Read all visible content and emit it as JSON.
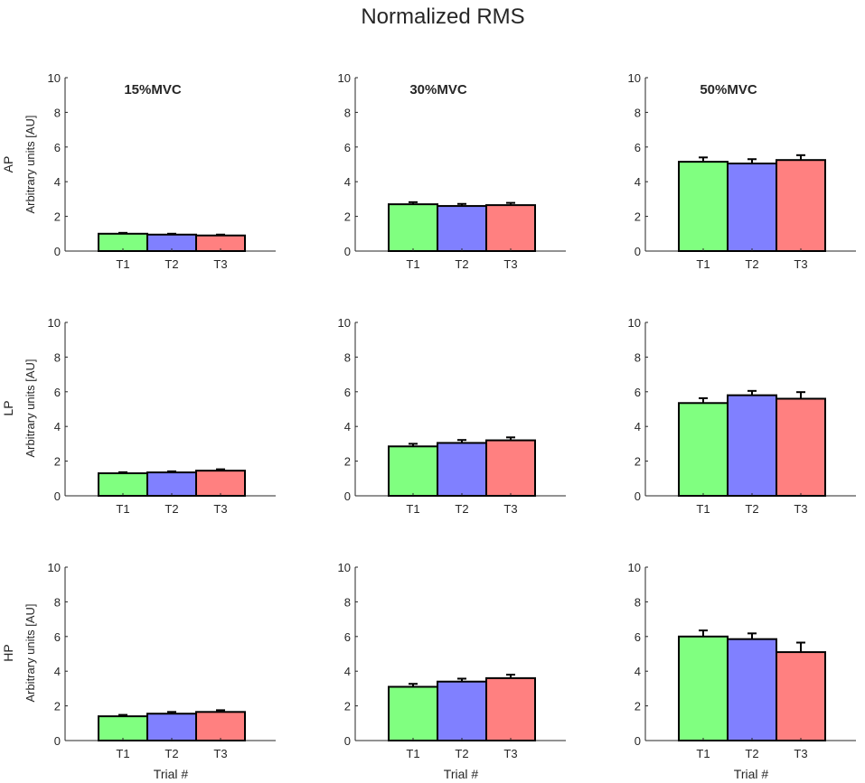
{
  "figure_title": "Normalized RMS",
  "column_titles": [
    "15%MVC",
    "30%MVC",
    "50%MVC"
  ],
  "row_labels": [
    "AP",
    "LP",
    "HP"
  ],
  "ylabel": "Arbitrary units [AU]",
  "xlabel": "Trial #",
  "colors": {
    "T1": "#80ff80",
    "T2": "#8080ff",
    "T3": "#ff8080",
    "axis": "#262626"
  },
  "chart_data": [
    {
      "type": "bar",
      "row": "AP",
      "column": "15%MVC",
      "categories": [
        "T1",
        "T2",
        "T3"
      ],
      "values": [
        1.0,
        0.95,
        0.9
      ],
      "errors": [
        0.05,
        0.05,
        0.05
      ],
      "ylim": [
        0,
        10
      ],
      "yticks": [
        0,
        2,
        4,
        6,
        8,
        10
      ]
    },
    {
      "type": "bar",
      "row": "AP",
      "column": "30%MVC",
      "categories": [
        "T1",
        "T2",
        "T3"
      ],
      "values": [
        2.7,
        2.6,
        2.65
      ],
      "errors": [
        0.12,
        0.12,
        0.13
      ],
      "ylim": [
        0,
        10
      ],
      "yticks": [
        0,
        2,
        4,
        6,
        8,
        10
      ]
    },
    {
      "type": "bar",
      "row": "AP",
      "column": "50%MVC",
      "categories": [
        "T1",
        "T2",
        "T3"
      ],
      "values": [
        5.15,
        5.05,
        5.25
      ],
      "errors": [
        0.25,
        0.25,
        0.28
      ],
      "ylim": [
        0,
        10
      ],
      "yticks": [
        0,
        2,
        4,
        6,
        8,
        10
      ]
    },
    {
      "type": "bar",
      "row": "LP",
      "column": "15%MVC",
      "categories": [
        "T1",
        "T2",
        "T3"
      ],
      "values": [
        1.3,
        1.35,
        1.45
      ],
      "errors": [
        0.06,
        0.06,
        0.08
      ],
      "ylim": [
        0,
        10
      ],
      "yticks": [
        0,
        2,
        4,
        6,
        8,
        10
      ]
    },
    {
      "type": "bar",
      "row": "LP",
      "column": "30%MVC",
      "categories": [
        "T1",
        "T2",
        "T3"
      ],
      "values": [
        2.85,
        3.05,
        3.2
      ],
      "errors": [
        0.15,
        0.17,
        0.17
      ],
      "ylim": [
        0,
        10
      ],
      "yticks": [
        0,
        2,
        4,
        6,
        8,
        10
      ]
    },
    {
      "type": "bar",
      "row": "LP",
      "column": "50%MVC",
      "categories": [
        "T1",
        "T2",
        "T3"
      ],
      "values": [
        5.35,
        5.8,
        5.6
      ],
      "errors": [
        0.28,
        0.25,
        0.38
      ],
      "ylim": [
        0,
        10
      ],
      "yticks": [
        0,
        2,
        4,
        6,
        8,
        10
      ]
    },
    {
      "type": "bar",
      "row": "HP",
      "column": "15%MVC",
      "categories": [
        "T1",
        "T2",
        "T3"
      ],
      "values": [
        1.4,
        1.55,
        1.65
      ],
      "errors": [
        0.08,
        0.1,
        0.1
      ],
      "ylim": [
        0,
        10
      ],
      "yticks": [
        0,
        2,
        4,
        6,
        8,
        10
      ]
    },
    {
      "type": "bar",
      "row": "HP",
      "column": "30%MVC",
      "categories": [
        "T1",
        "T2",
        "T3"
      ],
      "values": [
        3.1,
        3.4,
        3.6
      ],
      "errors": [
        0.17,
        0.17,
        0.2
      ],
      "ylim": [
        0,
        10
      ],
      "yticks": [
        0,
        2,
        4,
        6,
        8,
        10
      ]
    },
    {
      "type": "bar",
      "row": "HP",
      "column": "50%MVC",
      "categories": [
        "T1",
        "T2",
        "T3"
      ],
      "values": [
        6.0,
        5.85,
        5.1
      ],
      "errors": [
        0.35,
        0.33,
        0.55
      ],
      "ylim": [
        0,
        10
      ],
      "yticks": [
        0,
        2,
        4,
        6,
        8,
        10
      ]
    }
  ]
}
